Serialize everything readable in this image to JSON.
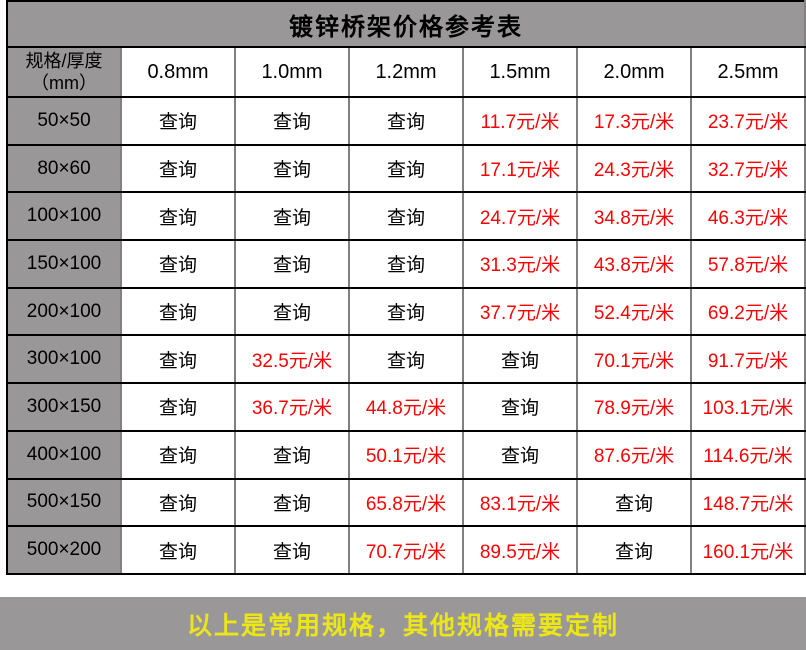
{
  "table": {
    "title": "镀锌桥架价格参考表",
    "corner_header": {
      "line1": "规格/厚度",
      "line2": "（mm）"
    },
    "thickness_columns": [
      "0.8mm",
      "1.0mm",
      "1.2mm",
      "1.5mm",
      "2.0mm",
      "2.5mm"
    ],
    "query_label": "查询",
    "rows": [
      {
        "spec": "50×50",
        "values": [
          "查询",
          "查询",
          "查询",
          "11.7元/米",
          "17.3元/米",
          "23.7元/米"
        ]
      },
      {
        "spec": "80×60",
        "values": [
          "查询",
          "查询",
          "查询",
          "17.1元/米",
          "24.3元/米",
          "32.7元/米"
        ]
      },
      {
        "spec": "100×100",
        "values": [
          "查询",
          "查询",
          "查询",
          "24.7元/米",
          "34.8元/米",
          "46.3元/米"
        ]
      },
      {
        "spec": "150×100",
        "values": [
          "查询",
          "查询",
          "查询",
          "31.3元/米",
          "43.8元/米",
          "57.8元/米"
        ]
      },
      {
        "spec": "200×100",
        "values": [
          "查询",
          "查询",
          "查询",
          "37.7元/米",
          "52.4元/米",
          "69.2元/米"
        ]
      },
      {
        "spec": "300×100",
        "values": [
          "查询",
          "32.5元/米",
          "查询",
          "查询",
          "70.1元/米",
          "91.7元/米"
        ]
      },
      {
        "spec": "300×150",
        "values": [
          "查询",
          "36.7元/米",
          "44.8元/米",
          "查询",
          "78.9元/米",
          "103.1元/米"
        ]
      },
      {
        "spec": "400×100",
        "values": [
          "查询",
          "查询",
          "50.1元/米",
          "查询",
          "87.6元/米",
          "114.6元/米"
        ]
      },
      {
        "spec": "500×150",
        "values": [
          "查询",
          "查询",
          "65.8元/米",
          "83.1元/米",
          "查询",
          "148.7元/米"
        ]
      },
      {
        "spec": "500×200",
        "values": [
          "查询",
          "查询",
          "70.7元/米",
          "89.5元/米",
          "查询",
          "160.1元/米"
        ]
      }
    ],
    "footer_note": "以上是常用规格，其他规格需要定制"
  },
  "colors": {
    "band_gray": "#9a9798",
    "price_red": "#f80404",
    "note_yellow": "#ece619",
    "grid_vertical": "#808080",
    "grid_horizontal": "#000000"
  }
}
